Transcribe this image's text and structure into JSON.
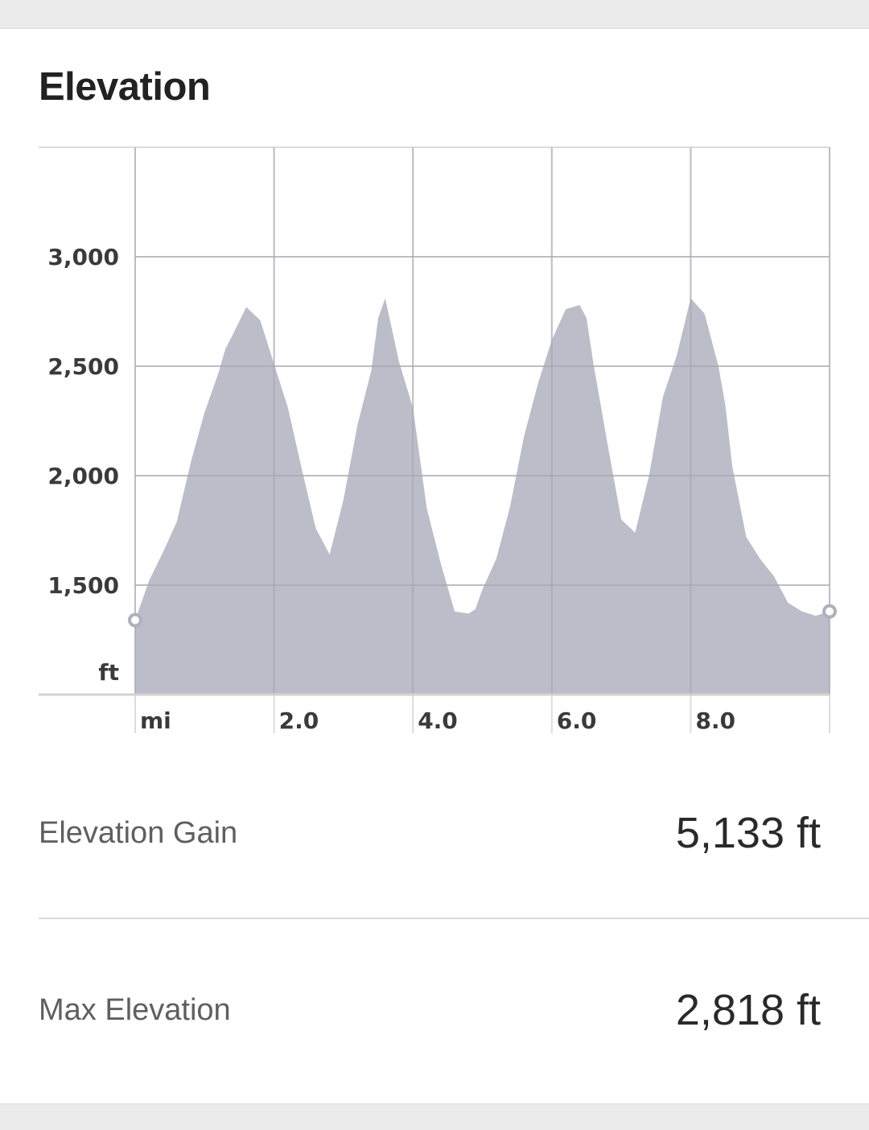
{
  "card": {
    "title": "Elevation"
  },
  "chart_data": {
    "type": "area",
    "title": "Elevation",
    "xlabel": "mi",
    "ylabel": "ft",
    "x_ticks": [
      {
        "value": 2.0,
        "label": "2.0"
      },
      {
        "value": 4.0,
        "label": "4.0"
      },
      {
        "value": 6.0,
        "label": "6.0"
      },
      {
        "value": 8.0,
        "label": "8.0"
      }
    ],
    "y_ticks": [
      {
        "value": 1500,
        "label": "1,500"
      },
      {
        "value": 2000,
        "label": "2,000"
      },
      {
        "value": 2500,
        "label": "2,500"
      },
      {
        "value": 3000,
        "label": "3,000"
      }
    ],
    "xlim": [
      0,
      10
    ],
    "ylim": [
      1000,
      3500
    ],
    "grid": true,
    "fill_color": "#b9b9c6",
    "series": [
      {
        "x": [
          0.0,
          0.2,
          0.4,
          0.6,
          0.8,
          1.0,
          1.2,
          1.3,
          1.4,
          1.6,
          1.8,
          2.0,
          2.2,
          2.4,
          2.6,
          2.8,
          3.0,
          3.2,
          3.4,
          3.5,
          3.6,
          3.8,
          4.0,
          4.2,
          4.4,
          4.6,
          4.8,
          4.9,
          5.0,
          5.2,
          5.4,
          5.6,
          5.8,
          6.0,
          6.2,
          6.4,
          6.5,
          6.6,
          6.8,
          7.0,
          7.2,
          7.4,
          7.6,
          7.8,
          8.0,
          8.2,
          8.4,
          8.5,
          8.6,
          8.8,
          9.0,
          9.2,
          9.4,
          9.6,
          9.8,
          10.0
        ],
        "values": [
          1340,
          1520,
          1650,
          1790,
          2060,
          2290,
          2470,
          2580,
          2640,
          2770,
          2710,
          2510,
          2310,
          2030,
          1760,
          1640,
          1890,
          2230,
          2480,
          2720,
          2810,
          2520,
          2310,
          1850,
          1600,
          1380,
          1370,
          1390,
          1480,
          1620,
          1860,
          2180,
          2420,
          2620,
          2760,
          2780,
          2720,
          2510,
          2150,
          1800,
          1740,
          2000,
          2360,
          2550,
          2810,
          2740,
          2500,
          2320,
          2040,
          1720,
          1620,
          1540,
          1420,
          1380,
          1360,
          1380
        ],
        "endpoints": [
          1340,
          1380
        ]
      }
    ]
  },
  "stats": [
    {
      "label": "Elevation Gain",
      "value": "5,133 ft"
    },
    {
      "label": "Max Elevation",
      "value": "2,818 ft"
    }
  ]
}
